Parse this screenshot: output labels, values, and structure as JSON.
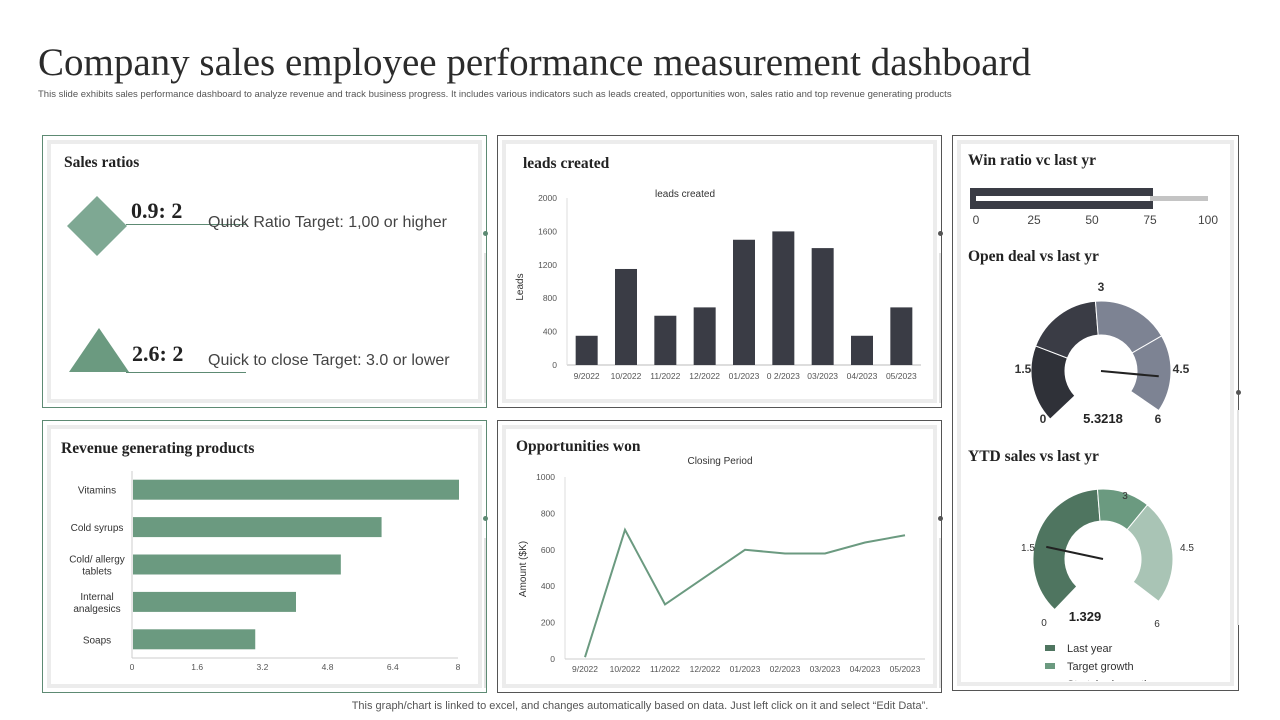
{
  "title": "Company sales employee performance measurement dashboard",
  "subtitle": "This slide exhibits sales performance dashboard to analyze revenue and track business progress. It includes various indicators such as leads created, opportunities won, sales ratio and top revenue generating products",
  "footer": "This graph/chart is linked to excel, and changes automatically based on data. Just left click on it and select “Edit Data”.",
  "colors": {
    "dark": "#3a3c45",
    "green": "#6b9a80",
    "accent": "#5d8a73"
  },
  "sales_ratios": {
    "title": "Sales ratios",
    "items": [
      {
        "value": "0.9: 2",
        "label": "Quick Ratio Target: 1,00 or higher",
        "icon": "diamond-icon"
      },
      {
        "value": "2.6: 2",
        "label": "Quick to close Target: 3.0 or lower",
        "icon": "triangle-icon"
      }
    ]
  },
  "leads": {
    "title": "leads created",
    "chart_data": {
      "type": "bar",
      "title": "leads created",
      "ylabel": "Leads",
      "categories": [
        "9/2022",
        "10/2022",
        "11/2022",
        "12/2022",
        "01/2023",
        "0 2/2023",
        "03/2023",
        "04/2023",
        "05/2023"
      ],
      "values": [
        350,
        1150,
        590,
        690,
        1500,
        1600,
        1400,
        350,
        690
      ],
      "ylim": [
        0,
        2000
      ],
      "yticks": [
        0,
        400,
        800,
        1200,
        1600,
        2000
      ]
    }
  },
  "win_ratio": {
    "title": "Win ratio vc last yr",
    "chart_data": {
      "type": "bar",
      "orientation": "horizontal",
      "value": 75,
      "target": 100,
      "xlim": [
        0,
        100
      ],
      "xticks": [
        0,
        25,
        50,
        75,
        100
      ]
    }
  },
  "open_deal": {
    "title": "Open deal vs last yr",
    "chart_data": {
      "type": "gauge",
      "value": 5.3218,
      "value_label": "5.3218",
      "min": 0,
      "max": 6,
      "bands": [
        {
          "from": 0,
          "to": 1.5,
          "color": "#2f3138"
        },
        {
          "from": 1.5,
          "to": 3,
          "color": "#3a3c45"
        },
        {
          "from": 3,
          "to": 4.5,
          "color": "#7d8393"
        },
        {
          "from": 4.5,
          "to": 6,
          "color": "#7d8393"
        }
      ],
      "tick_labels": [
        "0",
        "1.5",
        "3",
        "4.5",
        "6"
      ]
    }
  },
  "revenue": {
    "title": "Revenue generating products",
    "chart_data": {
      "type": "bar",
      "orientation": "horizontal",
      "categories": [
        "Vitamins",
        "Cold syrups",
        "Cold/ allergy tablets",
        "Internal analgesics",
        "Soaps"
      ],
      "category_lines": [
        [
          "Vitamins"
        ],
        [
          "Cold syrups"
        ],
        [
          "Cold/ allergy",
          "tablets"
        ],
        [
          "Internal",
          "analgesics"
        ],
        [
          "Soaps"
        ]
      ],
      "values": [
        8,
        6.1,
        5.1,
        4.0,
        3.0
      ],
      "xlim": [
        0,
        8
      ],
      "xticks": [
        "0",
        "1.6",
        "3.2",
        "4.8",
        "6.4",
        "8"
      ]
    }
  },
  "opportunities": {
    "title": "Opportunities won",
    "chart_data": {
      "type": "line",
      "title": "Closing Period",
      "ylabel": "Amount ($K)",
      "categories": [
        "9/2022",
        "10/2022",
        "11/2022",
        "12/2022",
        "01/2023",
        "02/2023",
        "03/2023",
        "04/2023",
        "05/2023"
      ],
      "values": [
        10,
        710,
        300,
        450,
        600,
        580,
        580,
        640,
        680
      ],
      "ylim": [
        0,
        1000
      ],
      "yticks": [
        0,
        200,
        400,
        600,
        800,
        1000
      ]
    }
  },
  "ytd_sales": {
    "title": "YTD sales vs last yr",
    "chart_data": {
      "type": "gauge",
      "value": 1.329,
      "value_label": "1.329",
      "min": 0,
      "max": 6,
      "tick_labels": [
        "0",
        "1.5",
        "3",
        "4.5",
        "6"
      ],
      "bands": [
        {
          "from": 0,
          "to": 3,
          "color": "#4f7560",
          "name": "Last year"
        },
        {
          "from": 3,
          "to": 4,
          "color": "#6b9a80",
          "name": "Target growth"
        },
        {
          "from": 4,
          "to": 6,
          "color": "#a9c4b5",
          "name": "Stretched growth"
        }
      ],
      "legend": [
        {
          "name": "Last year",
          "color": "#4f7560"
        },
        {
          "name": "Target growth",
          "color": "#6b9a80"
        },
        {
          "name": "Stretched growth",
          "color": "#a9c4b5"
        }
      ]
    }
  }
}
